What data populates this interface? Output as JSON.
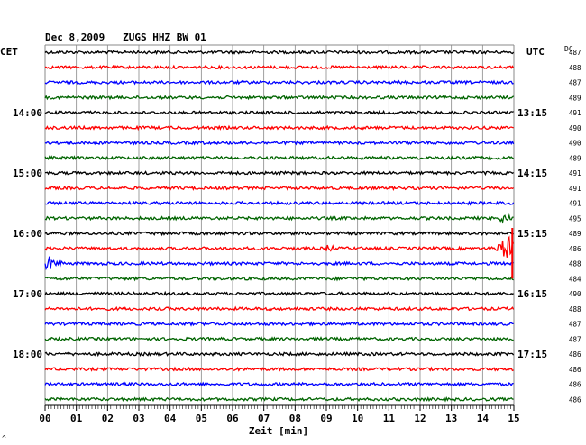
{
  "chart_data": {
    "type": "line",
    "title": "Dec 8,2009   ZUGS HHZ BW 01",
    "left_timezone": "CET",
    "right_timezone": "UTC",
    "dc_label": "DC",
    "xlabel": "Zeit [min]",
    "xlim": [
      0,
      15
    ],
    "x_ticks": [
      "00",
      "01",
      "02",
      "03",
      "04",
      "05",
      "06",
      "07",
      "08",
      "09",
      "10",
      "11",
      "12",
      "13",
      "14",
      "15"
    ],
    "grid": true,
    "trace_colors": [
      "#000000",
      "#ff0000",
      "#0000ff",
      "#006400"
    ],
    "left_hour_labels": [
      {
        "row": 4,
        "label": "14:00"
      },
      {
        "row": 8,
        "label": "15:00"
      },
      {
        "row": 12,
        "label": "16:00"
      },
      {
        "row": 16,
        "label": "17:00"
      },
      {
        "row": 20,
        "label": "18:00"
      }
    ],
    "right_hour_labels": [
      {
        "row": 4,
        "label": "13:15"
      },
      {
        "row": 8,
        "label": "14:15"
      },
      {
        "row": 12,
        "label": "15:15"
      },
      {
        "row": 16,
        "label": "16:15"
      },
      {
        "row": 20,
        "label": "17:15"
      }
    ],
    "dc_values": [
      "487",
      "488",
      "487",
      "489",
      "491",
      "490",
      "490",
      "489",
      "491",
      "491",
      "491",
      "495",
      "489",
      "486",
      "488",
      "484",
      "490",
      "488",
      "487",
      "487",
      "486",
      "486",
      "486",
      "486"
    ],
    "events": [
      {
        "row": 11,
        "center_min": 14.7,
        "width_min": 0.35,
        "amplitude": 6
      },
      {
        "row": 13,
        "center_min": 9.1,
        "width_min": 0.18,
        "amplitude": 7
      },
      {
        "row": 13,
        "center_min": 14.8,
        "width_min": 0.5,
        "amplitude": 14
      },
      {
        "row": 14,
        "center_min": 0.2,
        "width_min": 0.8,
        "amplitude": 12,
        "decay": true
      }
    ],
    "offscale_spike": {
      "row": 13,
      "at_min": 14.95,
      "from_row": 12,
      "to_row": 15
    }
  },
  "footnote": "^"
}
